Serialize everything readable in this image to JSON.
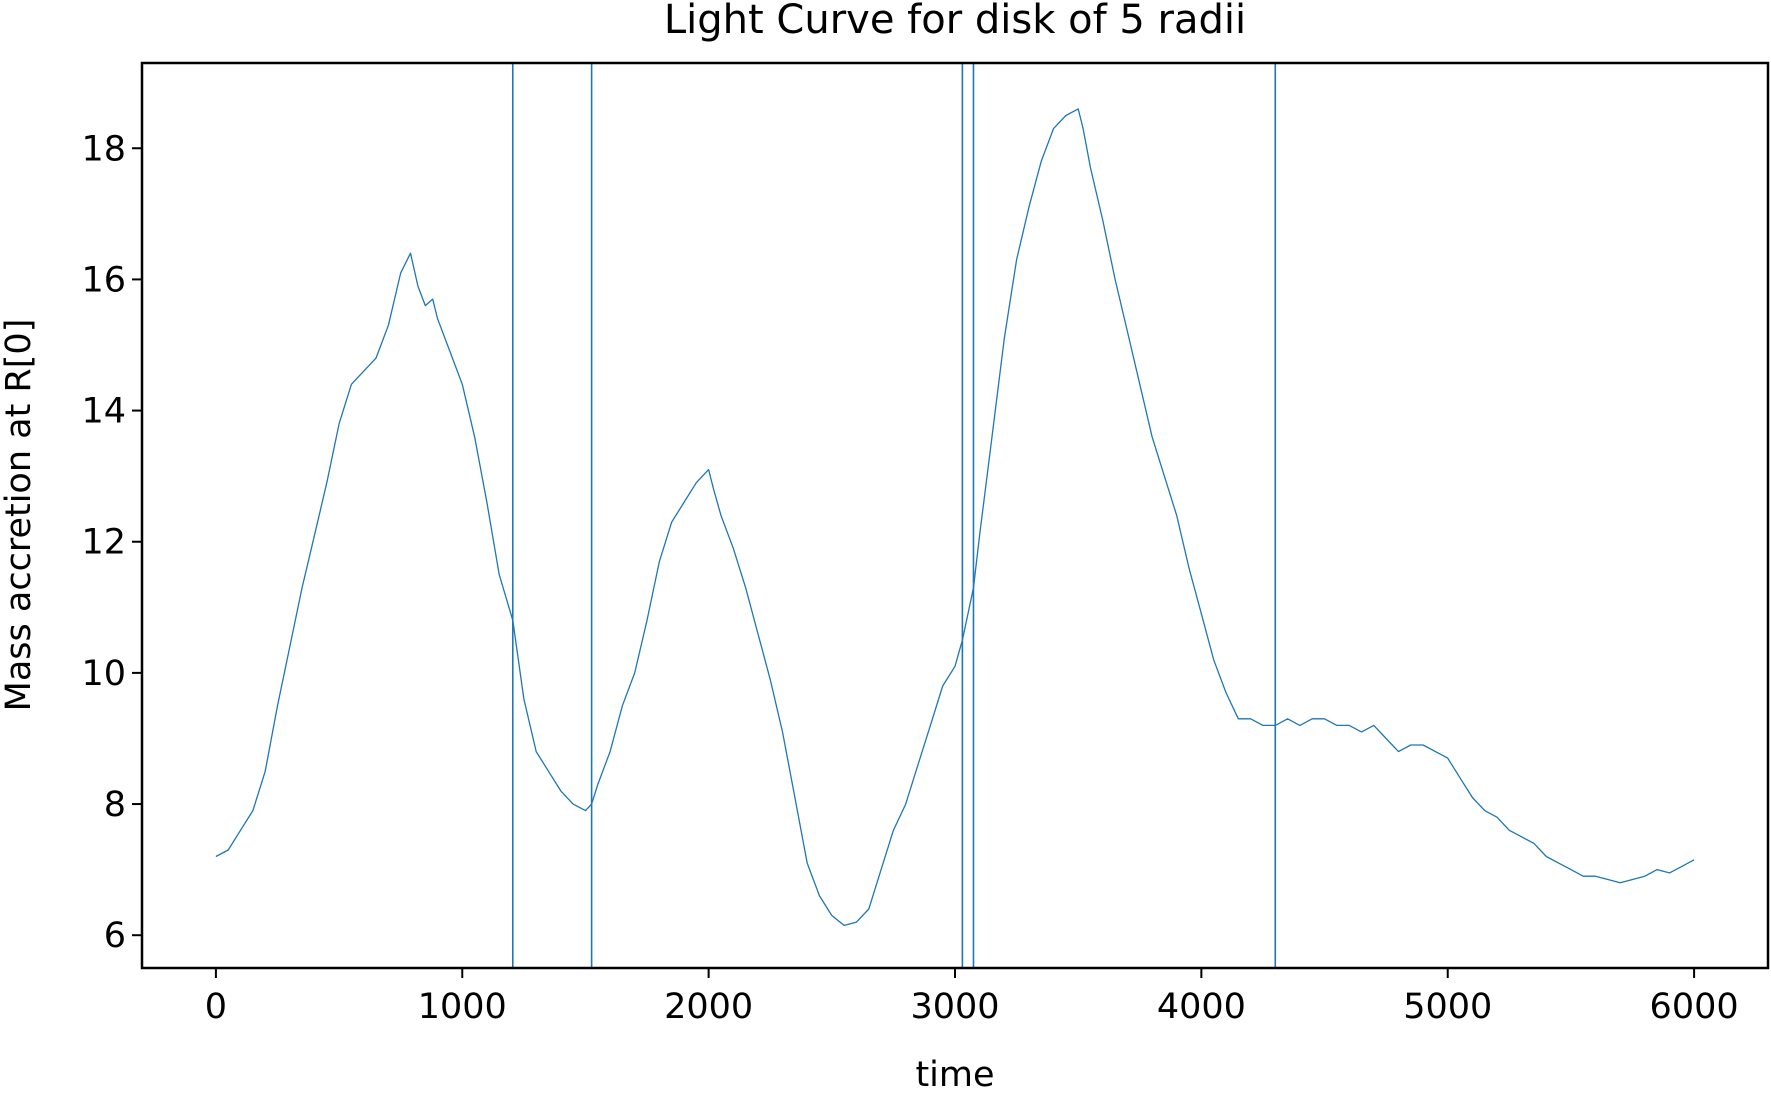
{
  "chart_data": {
    "type": "line",
    "title": "Light Curve for disk of 5 radii",
    "xlabel": "time",
    "ylabel": "Mass accretion at R[0]",
    "xlim": [
      -300,
      6300
    ],
    "ylim": [
      5.5,
      19.3
    ],
    "xticks": [
      0,
      1000,
      2000,
      3000,
      4000,
      5000,
      6000
    ],
    "xtick_labels": [
      "0",
      "1000",
      "2000",
      "3000",
      "4000",
      "5000",
      "6000"
    ],
    "yticks": [
      6,
      8,
      10,
      12,
      14,
      16,
      18
    ],
    "ytick_labels": [
      "6",
      "8",
      "10",
      "12",
      "14",
      "16",
      "18"
    ],
    "grid": false,
    "color": "#1f77b4",
    "vertical_lines": [
      1205,
      1525,
      3030,
      3075,
      4300
    ],
    "series": [
      {
        "x": [
          0,
          50,
          100,
          150,
          200,
          250,
          300,
          350,
          400,
          450,
          500,
          550,
          600,
          650,
          700,
          750,
          790,
          820,
          850,
          880,
          900,
          950,
          1000,
          1050,
          1100,
          1150,
          1205,
          1250,
          1300,
          1350,
          1400,
          1450,
          1500,
          1525,
          1550,
          1600,
          1650,
          1700,
          1750,
          1800,
          1850,
          1900,
          1950,
          2000,
          2020,
          2050,
          2100,
          2150,
          2200,
          2250,
          2300,
          2350,
          2400,
          2450,
          2500,
          2550,
          2600,
          2650,
          2700,
          2750,
          2800,
          2850,
          2900,
          2950,
          3000,
          3030,
          3075,
          3100,
          3150,
          3200,
          3250,
          3300,
          3350,
          3400,
          3450,
          3500,
          3520,
          3550,
          3600,
          3650,
          3700,
          3750,
          3800,
          3850,
          3900,
          3950,
          4000,
          4050,
          4100,
          4150,
          4200,
          4250,
          4300,
          4350,
          4400,
          4450,
          4500,
          4550,
          4600,
          4650,
          4700,
          4750,
          4800,
          4850,
          4900,
          4950,
          5000,
          5050,
          5100,
          5150,
          5200,
          5250,
          5300,
          5350,
          5400,
          5450,
          5500,
          5550,
          5600,
          5650,
          5700,
          5750,
          5800,
          5850,
          5900,
          5950,
          6000
        ],
        "y": [
          7.2,
          7.3,
          7.6,
          7.9,
          8.5,
          9.5,
          10.4,
          11.3,
          12.1,
          12.9,
          13.8,
          14.4,
          14.6,
          14.8,
          15.3,
          16.1,
          16.4,
          15.9,
          15.6,
          15.7,
          15.4,
          14.9,
          14.4,
          13.6,
          12.6,
          11.5,
          10.8,
          9.6,
          8.8,
          8.5,
          8.2,
          8.0,
          7.9,
          8.0,
          8.3,
          8.8,
          9.5,
          10.0,
          10.8,
          11.7,
          12.3,
          12.6,
          12.9,
          13.1,
          12.8,
          12.4,
          11.9,
          11.3,
          10.6,
          9.9,
          9.1,
          8.1,
          7.1,
          6.6,
          6.3,
          6.15,
          6.2,
          6.4,
          7.0,
          7.6,
          8.0,
          8.6,
          9.2,
          9.8,
          10.1,
          10.5,
          11.3,
          12.1,
          13.6,
          15.1,
          16.3,
          17.1,
          17.8,
          18.3,
          18.5,
          18.6,
          18.3,
          17.7,
          16.9,
          16.0,
          15.2,
          14.4,
          13.6,
          13.0,
          12.4,
          11.6,
          10.9,
          10.2,
          9.7,
          9.3,
          9.3,
          9.2,
          9.2,
          9.3,
          9.2,
          9.3,
          9.3,
          9.2,
          9.2,
          9.1,
          9.2,
          9.0,
          8.8,
          8.9,
          8.9,
          8.8,
          8.7,
          8.4,
          8.1,
          7.9,
          7.8,
          7.6,
          7.5,
          7.4,
          7.2,
          7.1,
          7.0,
          6.9,
          6.9,
          6.85,
          6.8,
          6.85,
          6.9,
          7.0,
          6.95,
          7.05,
          7.15
        ]
      }
    ]
  }
}
